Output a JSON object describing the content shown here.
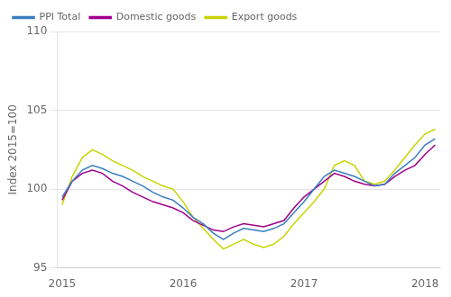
{
  "chart_data": {
    "type": "line",
    "ylabel": "Index 2015=100",
    "categories": [
      "2015",
      null,
      null,
      null,
      null,
      null,
      null,
      null,
      null,
      null,
      null,
      null,
      "2016",
      null,
      null,
      null,
      null,
      null,
      null,
      null,
      null,
      null,
      null,
      null,
      "2017",
      null,
      null,
      null,
      null,
      null,
      null,
      null,
      null,
      null,
      null,
      null,
      "2018",
      null
    ],
    "series": [
      {
        "name": "PPI Total",
        "color": "#3A7EBF",
        "values": [
          99.5,
          100.5,
          101.2,
          101.5,
          101.3,
          101.0,
          100.8,
          100.5,
          100.2,
          99.8,
          99.5,
          99.3,
          98.8,
          98.2,
          97.8,
          97.2,
          96.8,
          97.2,
          97.5,
          97.4,
          97.3,
          97.5,
          97.8,
          98.5,
          99.2,
          100.0,
          100.8,
          101.2,
          101.0,
          100.8,
          100.5,
          100.2,
          100.3,
          101.0,
          101.5,
          102.0,
          102.8,
          103.2
        ]
      },
      {
        "name": "Domestic goods",
        "color": "#A0008C",
        "values": [
          99.3,
          100.5,
          101.0,
          101.2,
          101.0,
          100.5,
          100.2,
          99.8,
          99.5,
          99.2,
          99.0,
          98.8,
          98.5,
          98.0,
          97.7,
          97.4,
          97.3,
          97.6,
          97.8,
          97.7,
          97.6,
          97.8,
          98.0,
          98.8,
          99.5,
          100.0,
          100.5,
          101.0,
          100.8,
          100.5,
          100.3,
          100.2,
          100.3,
          100.8,
          101.2,
          101.5,
          102.2,
          102.8
        ]
      },
      {
        "name": "Export goods",
        "color": "#C8D400",
        "values": [
          99.0,
          100.8,
          102.0,
          102.5,
          102.2,
          101.8,
          101.5,
          101.2,
          100.8,
          100.5,
          100.2,
          100.0,
          99.2,
          98.2,
          97.5,
          96.8,
          96.2,
          96.5,
          96.8,
          96.5,
          96.3,
          96.5,
          97.0,
          97.8,
          98.5,
          99.2,
          100.0,
          101.5,
          101.8,
          101.5,
          100.5,
          100.3,
          100.5,
          101.2,
          102.0,
          102.8,
          103.5,
          103.8
        ]
      }
    ],
    "ylim": [
      95,
      110
    ],
    "yticks": [
      95,
      100,
      105,
      110
    ],
    "grid": "y",
    "legend": "upper left"
  }
}
